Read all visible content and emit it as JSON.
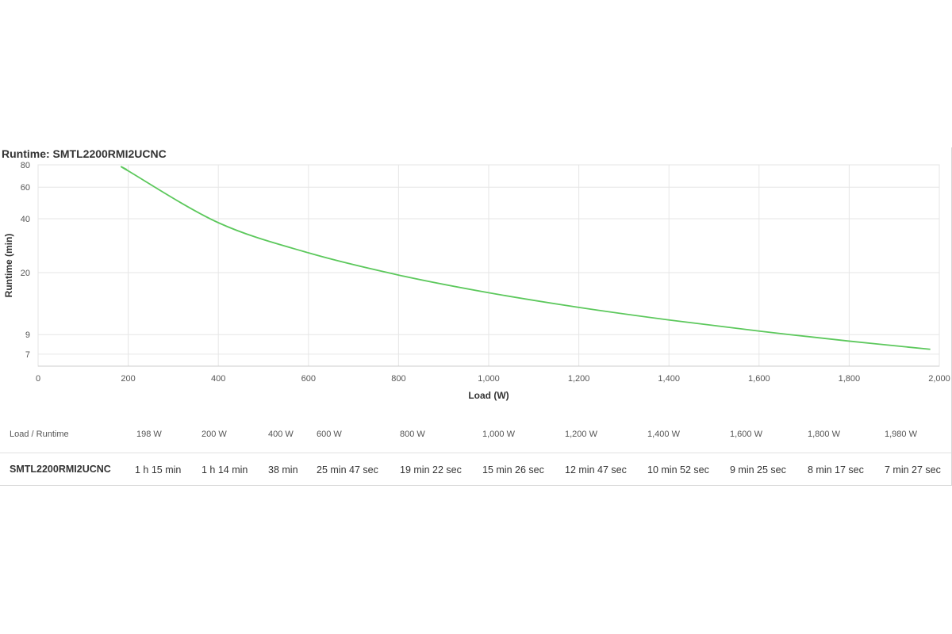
{
  "chart_data": {
    "type": "line",
    "title": "Runtime: SMTL2200RMI2UCNC",
    "xlabel": "Load (W)",
    "ylabel": "Runtime (min)",
    "xlim": [
      0,
      2000
    ],
    "ylim": [
      6,
      80
    ],
    "y_scale": "log",
    "x_ticks": [
      0,
      200,
      400,
      600,
      800,
      1000,
      1200,
      1400,
      1600,
      1800,
      2000
    ],
    "x_tick_labels": [
      "0",
      "200",
      "400",
      "600",
      "800",
      "1,000",
      "1,200",
      "1,400",
      "1,600",
      "1,800",
      "2,000"
    ],
    "y_ticks": [
      7,
      9,
      20,
      40,
      60,
      80
    ],
    "y_tick_labels": [
      "7",
      "9",
      "20",
      "40",
      "60",
      "80"
    ],
    "grid": true,
    "line_color": "#5cc85c",
    "series": [
      {
        "x": [
          198,
          200,
          400,
          600,
          800,
          1000,
          1200,
          1400,
          1600,
          1800,
          1980
        ],
        "y": [
          75,
          74,
          38,
          25.78,
          19.37,
          15.43,
          12.78,
          10.87,
          9.42,
          8.28,
          7.45
        ]
      }
    ]
  },
  "table": {
    "header_label": "Load / Runtime",
    "model": "SMTL2200RMI2UCNC",
    "loads": [
      "198 W",
      "200 W",
      "400 W",
      "600 W",
      "800 W",
      "1,000 W",
      "1,200 W",
      "1,400 W",
      "1,600 W",
      "1,800 W",
      "1,980 W"
    ],
    "runtimes": [
      "1 h 15 min",
      "1 h 14 min",
      "38 min",
      "25 min 47 sec",
      "19 min 22 sec",
      "15 min 26 sec",
      "12 min 47 sec",
      "10 min 52 sec",
      "9 min 25 sec",
      "8 min 17 sec",
      "7 min 27 sec"
    ]
  }
}
